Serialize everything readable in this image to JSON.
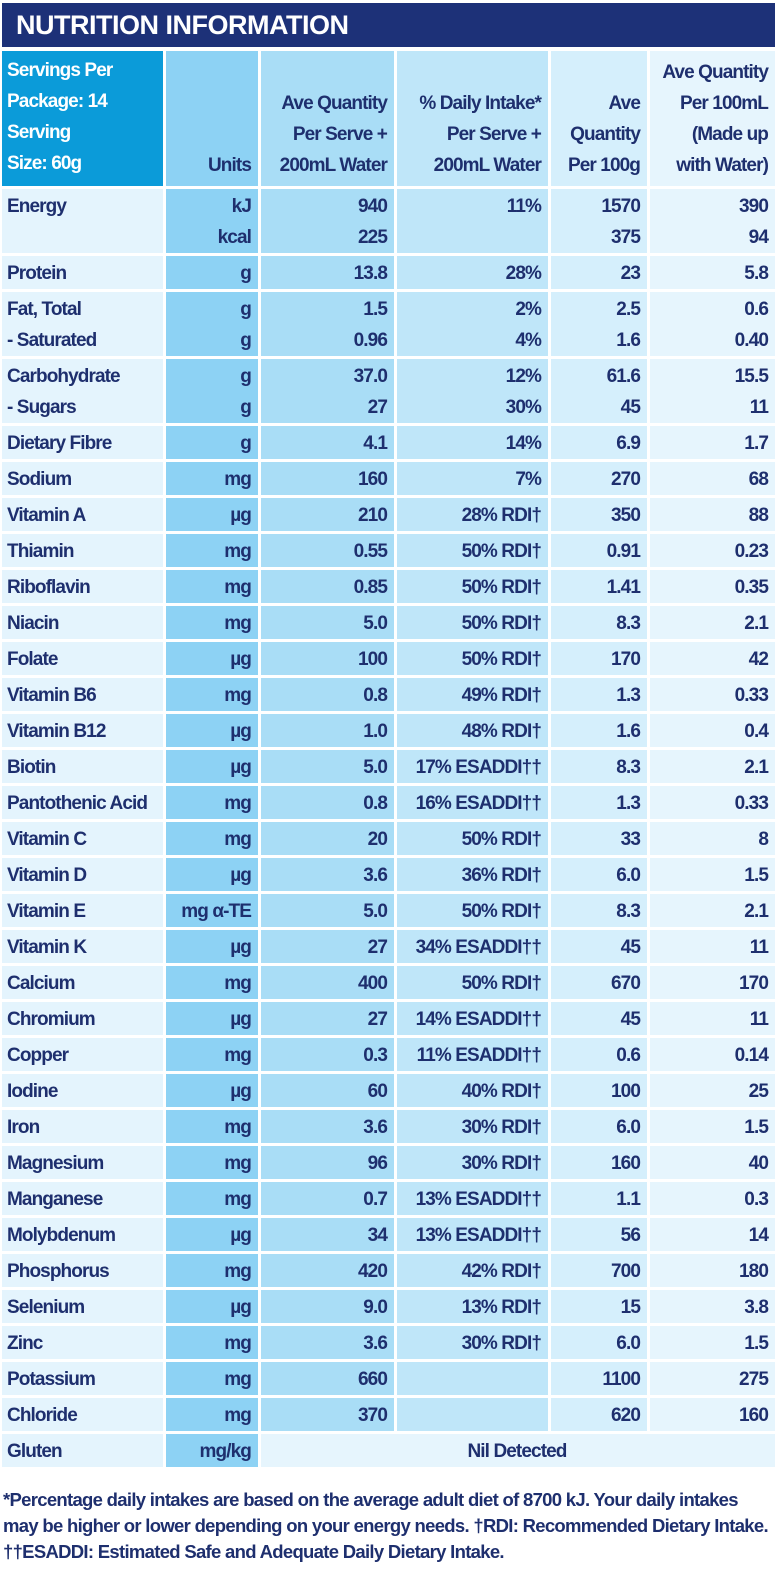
{
  "title": "NUTRITION INFORMATION",
  "header": {
    "servings": "Servings Per\nPackage: 14\nServing\nSize: 60g",
    "units": "Units",
    "per_serve": "Ave Quantity\nPer Serve +\n200mL Water",
    "daily_intake": "% Daily Intake*\nPer Serve +\n200mL Water",
    "per_100g": "Ave\nQuantity\nPer 100g",
    "per_100ml": "Ave Quantity\nPer 100mL\n(Made up\nwith Water)"
  },
  "rows": [
    [
      "Energy",
      "kJ\nkcal",
      "940\n225",
      "11%",
      "1570\n375",
      "390\n94"
    ],
    [
      "Protein",
      "g",
      "13.8",
      "28%",
      "23",
      "5.8"
    ],
    [
      "Fat, Total\n   - Saturated",
      "g\ng",
      "1.5\n0.96",
      "2%\n4%",
      "2.5\n1.6",
      "0.6\n0.40"
    ],
    [
      "Carbohydrate\n   - Sugars",
      "g\ng",
      "37.0\n27",
      "12%\n30%",
      "61.6\n45",
      "15.5\n11"
    ],
    [
      "Dietary Fibre",
      "g",
      "4.1",
      "14%",
      "6.9",
      "1.7"
    ],
    [
      "Sodium",
      "mg",
      "160",
      "7%",
      "270",
      "68"
    ],
    [
      "Vitamin A",
      "µg",
      "210",
      "28% RDI†",
      "350",
      "88"
    ],
    [
      "Thiamin",
      "mg",
      "0.55",
      "50% RDI†",
      "0.91",
      "0.23"
    ],
    [
      "Riboflavin",
      "mg",
      "0.85",
      "50% RDI†",
      "1.41",
      "0.35"
    ],
    [
      "Niacin",
      "mg",
      "5.0",
      "50% RDI†",
      "8.3",
      "2.1"
    ],
    [
      "Folate",
      "µg",
      "100",
      "50% RDI†",
      "170",
      "42"
    ],
    [
      "Vitamin B6",
      "mg",
      "0.8",
      "49% RDI†",
      "1.3",
      "0.33"
    ],
    [
      "Vitamin B12",
      "µg",
      "1.0",
      "48% RDI†",
      "1.6",
      "0.4"
    ],
    [
      "Biotin",
      "µg",
      "5.0",
      "17% ESADDI††",
      "8.3",
      "2.1"
    ],
    [
      "Pantothenic Acid",
      "mg",
      "0.8",
      "16% ESADDI††",
      "1.3",
      "0.33"
    ],
    [
      "Vitamin C",
      "mg",
      "20",
      "50% RDI†",
      "33",
      "8"
    ],
    [
      "Vitamin D",
      "µg",
      "3.6",
      "36% RDI†",
      "6.0",
      "1.5"
    ],
    [
      "Vitamin E",
      "mg α-TE",
      "5.0",
      "50% RDI†",
      "8.3",
      "2.1"
    ],
    [
      "Vitamin K",
      "µg",
      "27",
      "34% ESADDI††",
      "45",
      "11"
    ],
    [
      "Calcium",
      "mg",
      "400",
      "50% RDI†",
      "670",
      "170"
    ],
    [
      "Chromium",
      "µg",
      "27",
      "14% ESADDI††",
      "45",
      "11"
    ],
    [
      "Copper",
      "mg",
      "0.3",
      "11% ESADDI††",
      "0.6",
      "0.14"
    ],
    [
      "Iodine",
      "µg",
      "60",
      "40% RDI†",
      "100",
      "25"
    ],
    [
      "Iron",
      "mg",
      "3.6",
      "30% RDI†",
      "6.0",
      "1.5"
    ],
    [
      "Magnesium",
      "mg",
      "96",
      "30% RDI†",
      "160",
      "40"
    ],
    [
      "Manganese",
      "mg",
      "0.7",
      "13% ESADDI††",
      "1.1",
      "0.3"
    ],
    [
      "Molybdenum",
      "µg",
      "34",
      "13% ESADDI††",
      "56",
      "14"
    ],
    [
      "Phosphorus",
      "mg",
      "420",
      "42% RDI†",
      "700",
      "180"
    ],
    [
      "Selenium",
      "µg",
      "9.0",
      "13% RDI†",
      "15",
      "3.8"
    ],
    [
      "Zinc",
      "mg",
      "3.6",
      "30% RDI†",
      "6.0",
      "1.5"
    ],
    [
      "Potassium",
      "mg",
      "660",
      "",
      "1100",
      "275"
    ],
    [
      "Chloride",
      "mg",
      "370",
      "",
      "620",
      "160"
    ]
  ],
  "gluten": {
    "name": "Gluten",
    "unit": "mg/kg",
    "value": "Nil Detected"
  },
  "footnote": "*Percentage daily intakes are based on the average adult diet of 8700 kJ. Your daily intakes may be higher or lower depending on your energy needs. †RDI: Recommended Dietary Intake. ††ESADDI: Estimated Safe and Adequate Daily Dietary Intake.",
  "colors": {
    "title_bg": "#1d3178",
    "servings_bg": "#0b9bd9",
    "text": "#1e2f6e"
  }
}
